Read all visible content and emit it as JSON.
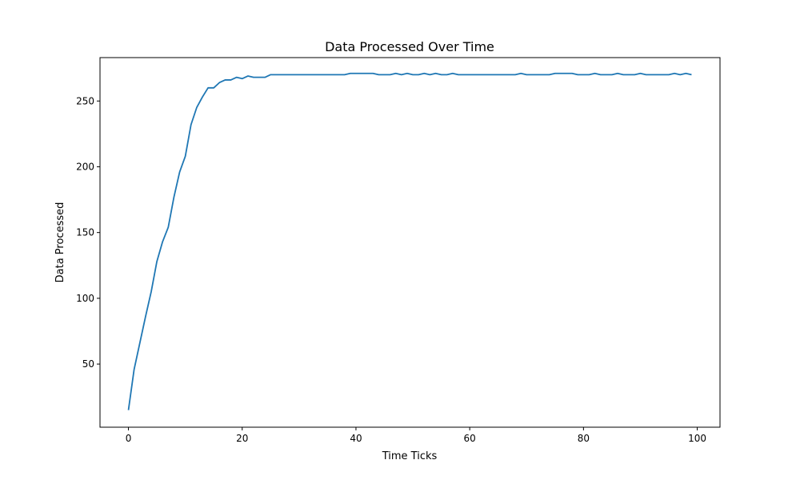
{
  "chart_data": {
    "type": "line",
    "title": "Data Processed Over Time",
    "xlabel": "Time Ticks",
    "ylabel": "Data Processed",
    "xlim": [
      -5,
      104
    ],
    "ylim": [
      2,
      283
    ],
    "xticks": [
      0,
      20,
      40,
      60,
      80,
      100
    ],
    "yticks": [
      50,
      100,
      150,
      200,
      250
    ],
    "grid": false,
    "legend": "none",
    "colors": {
      "line": "#1f77b4"
    },
    "series": [
      {
        "x": [
          0,
          1,
          2,
          3,
          4,
          5,
          6,
          7,
          8,
          9,
          10,
          11,
          12,
          13,
          14,
          15,
          16,
          17,
          18,
          19,
          20,
          21,
          22,
          23,
          24,
          25,
          26,
          27,
          28,
          29,
          30,
          31,
          32,
          33,
          34,
          35,
          36,
          37,
          38,
          39,
          40,
          41,
          42,
          43,
          44,
          45,
          46,
          47,
          48,
          49,
          50,
          51,
          52,
          53,
          54,
          55,
          56,
          57,
          58,
          59,
          60,
          61,
          62,
          63,
          64,
          65,
          66,
          67,
          68,
          69,
          70,
          71,
          72,
          73,
          74,
          75,
          76,
          77,
          78,
          79,
          80,
          81,
          82,
          83,
          84,
          85,
          86,
          87,
          88,
          89,
          90,
          91,
          92,
          93,
          94,
          95,
          96,
          97,
          98,
          99
        ],
        "values": [
          15,
          46,
          66,
          86,
          105,
          128,
          143,
          154,
          177,
          196,
          208,
          232,
          245,
          253,
          260,
          260,
          264,
          266,
          266,
          268,
          267,
          269,
          268,
          268,
          268,
          270,
          270,
          270,
          270,
          270,
          270,
          270,
          270,
          270,
          270,
          270,
          270,
          270,
          270,
          271,
          271,
          271,
          271,
          271,
          270,
          270,
          270,
          271,
          270,
          271,
          270,
          270,
          271,
          270,
          271,
          270,
          270,
          271,
          270,
          270,
          270,
          270,
          270,
          270,
          270,
          270,
          270,
          270,
          270,
          271,
          270,
          270,
          270,
          270,
          270,
          271,
          271,
          271,
          271,
          270,
          270,
          270,
          271,
          270,
          270,
          270,
          271,
          270,
          270,
          270,
          271,
          270,
          270,
          270,
          270,
          270,
          271,
          270,
          271,
          270
        ]
      }
    ]
  }
}
